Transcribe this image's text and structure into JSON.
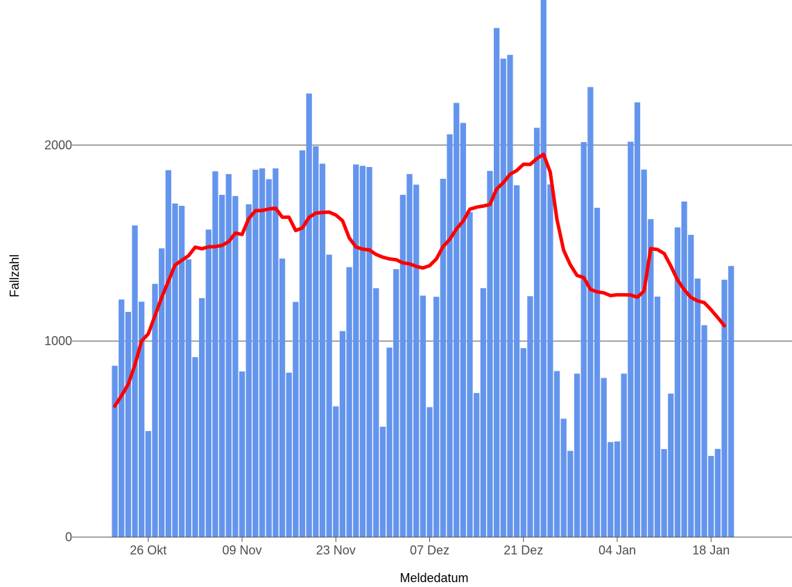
{
  "chart_data": {
    "type": "bar",
    "xlabel": "Meldedatum",
    "ylabel": "Fallzahl",
    "ylim": [
      0,
      2740
    ],
    "yticks": [
      0,
      1000,
      2000
    ],
    "ytick_labels": [
      "0",
      "1000",
      "2000"
    ],
    "grid": "horizontal at y ticks",
    "x_start_label": "2020-10-21",
    "xticks": [
      {
        "label": "26 Okt",
        "day": 5
      },
      {
        "label": "09 Nov",
        "day": 19
      },
      {
        "label": "23 Nov",
        "day": 33
      },
      {
        "label": "07 Dez",
        "day": 47
      },
      {
        "label": "21 Dez",
        "day": 61
      },
      {
        "label": "04 Jan",
        "day": 75
      },
      {
        "label": "18 Jan",
        "day": 89
      }
    ],
    "colors": {
      "bars": "#6495ED",
      "line": "#FF0000",
      "grid": "#4d4d4d"
    },
    "series": [
      {
        "kind": "bar",
        "values": [
          874,
          1212,
          1149,
          1590,
          1201,
          541,
          1292,
          1473,
          1872,
          1702,
          1690,
          1417,
          918,
          1219,
          1569,
          1866,
          1746,
          1852,
          1740,
          845,
          1698,
          1874,
          1881,
          1826,
          1881,
          1421,
          839,
          1200,
          1973,
          2263,
          1994,
          1905,
          1441,
          667,
          1051,
          1377,
          1901,
          1894,
          1888,
          1270,
          563,
          967,
          1367,
          1746,
          1852,
          1798,
          1232,
          663,
          1226,
          1828,
          2055,
          2215,
          2113,
          1658,
          735,
          1270,
          1868,
          2597,
          2441,
          2460,
          1795,
          964,
          1229,
          2088,
          2745,
          1799,
          847,
          604,
          440,
          834,
          2015,
          2296,
          1680,
          812,
          485,
          488,
          834,
          2017,
          2218,
          1875,
          1622,
          1227,
          449,
          732,
          1580,
          1712,
          1542,
          1319,
          1081,
          414,
          450,
          1313,
          1383
        ]
      },
      {
        "kind": "line",
        "values": [
          668,
          721,
          779,
          878,
          1000,
          1037,
          1129,
          1222,
          1305,
          1388,
          1412,
          1435,
          1479,
          1471,
          1481,
          1482,
          1488,
          1507,
          1551,
          1544,
          1625,
          1665,
          1666,
          1674,
          1678,
          1632,
          1632,
          1564,
          1577,
          1631,
          1653,
          1656,
          1658,
          1643,
          1614,
          1526,
          1480,
          1469,
          1465,
          1442,
          1428,
          1419,
          1415,
          1399,
          1394,
          1381,
          1373,
          1385,
          1419,
          1482,
          1519,
          1572,
          1612,
          1673,
          1683,
          1689,
          1697,
          1776,
          1808,
          1851,
          1870,
          1902,
          1901,
          1931,
          1953,
          1862,
          1621,
          1463,
          1389,
          1335,
          1324,
          1264,
          1251,
          1246,
          1232,
          1236,
          1236,
          1235,
          1224,
          1255,
          1472,
          1467,
          1447,
          1383,
          1312,
          1262,
          1223,
          1205,
          1196,
          1160,
          1120,
          1078
        ]
      }
    ]
  }
}
